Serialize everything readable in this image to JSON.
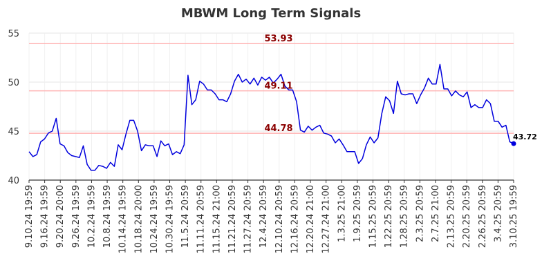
{
  "chart_data": {
    "type": "line",
    "title": "MBWM Long Term Signals",
    "xlabel": "",
    "ylabel": "",
    "ylim": [
      40,
      55
    ],
    "yticks": [
      "40",
      "45",
      "50",
      "55"
    ],
    "grid": true,
    "xtick_labels": [
      "9.10.24 19:59",
      "9.16.24 19:59",
      "9.20.24 20:00",
      "9.26.24 19:59",
      "10.2.24 19:59",
      "10.8.24 19:59",
      "10.14.24 19:59",
      "10.18.24 20:00",
      "10.24.24 19:59",
      "10.30.24 19:59",
      "11.5.24 20:59",
      "11.11.24 20:59",
      "11.15.24 21:00",
      "11.21.24 20:59",
      "11.27.24 20:59",
      "12.4.24 20:59",
      "12.10.24 20:59",
      "12.16.24 20:59",
      "12.20.24 21:00",
      "12.27.24 21:00",
      "1.3.25 21:00",
      "1.9.25 20:59",
      "1.15.25 20:59",
      "1.22.25 20:59",
      "1.28.25 20:59",
      "2.3.25 20:59",
      "2.7.25 21:00",
      "2.13.25 20:59",
      "2.20.25 20:59",
      "2.26.25 20:59",
      "3.4.25 20:59",
      "3.10.25 19:59"
    ],
    "reference_lines": [
      {
        "value": 53.93,
        "label": "53.93"
      },
      {
        "value": 49.11,
        "label": "49.11"
      },
      {
        "value": 44.78,
        "label": "44.78"
      }
    ],
    "line_color": "#0000dd",
    "ref_line_color": "#ffb3b3",
    "ref_label_color": "#8b0000",
    "last_value_label": "43.72",
    "series": [
      {
        "values": [
          42.9,
          42.4,
          42.6,
          43.9,
          44.2,
          44.8,
          45.0,
          46.3,
          43.7,
          43.5,
          42.8,
          42.5,
          42.4,
          42.3,
          43.5,
          41.6,
          41.0,
          41.0,
          41.5,
          41.4,
          41.2,
          41.8,
          41.4,
          43.6,
          43.1,
          44.7,
          46.1,
          46.1,
          45.0,
          43.0,
          43.6,
          43.5,
          43.5,
          42.4,
          44.0,
          43.5,
          43.7,
          42.6,
          42.9,
          42.7,
          43.6,
          50.7,
          47.7,
          48.2,
          50.1,
          49.8,
          49.2,
          49.2,
          48.8,
          48.2,
          48.2,
          48.0,
          48.8,
          50.1,
          50.8,
          50.0,
          50.3,
          49.8,
          50.4,
          49.7,
          50.5,
          50.2,
          50.5,
          49.9,
          50.3,
          50.8,
          49.6,
          49.2,
          49.2,
          48.0,
          45.1,
          44.9,
          45.5,
          45.1,
          45.4,
          45.6,
          44.8,
          44.7,
          44.5,
          43.8,
          44.2,
          43.6,
          42.9,
          42.9,
          42.9,
          41.7,
          42.2,
          43.6,
          44.4,
          43.8,
          44.3,
          46.8,
          48.5,
          48.1,
          46.8,
          50.1,
          48.8,
          48.7,
          48.8,
          48.8,
          47.8,
          48.7,
          49.4,
          50.4,
          49.8,
          49.8,
          51.8,
          49.3,
          49.3,
          48.6,
          49.1,
          48.7,
          48.5,
          49.0,
          47.4,
          47.7,
          47.4,
          47.4,
          48.2,
          47.8,
          46.0,
          46.0,
          45.4,
          45.6,
          43.9,
          43.72
        ]
      }
    ]
  }
}
